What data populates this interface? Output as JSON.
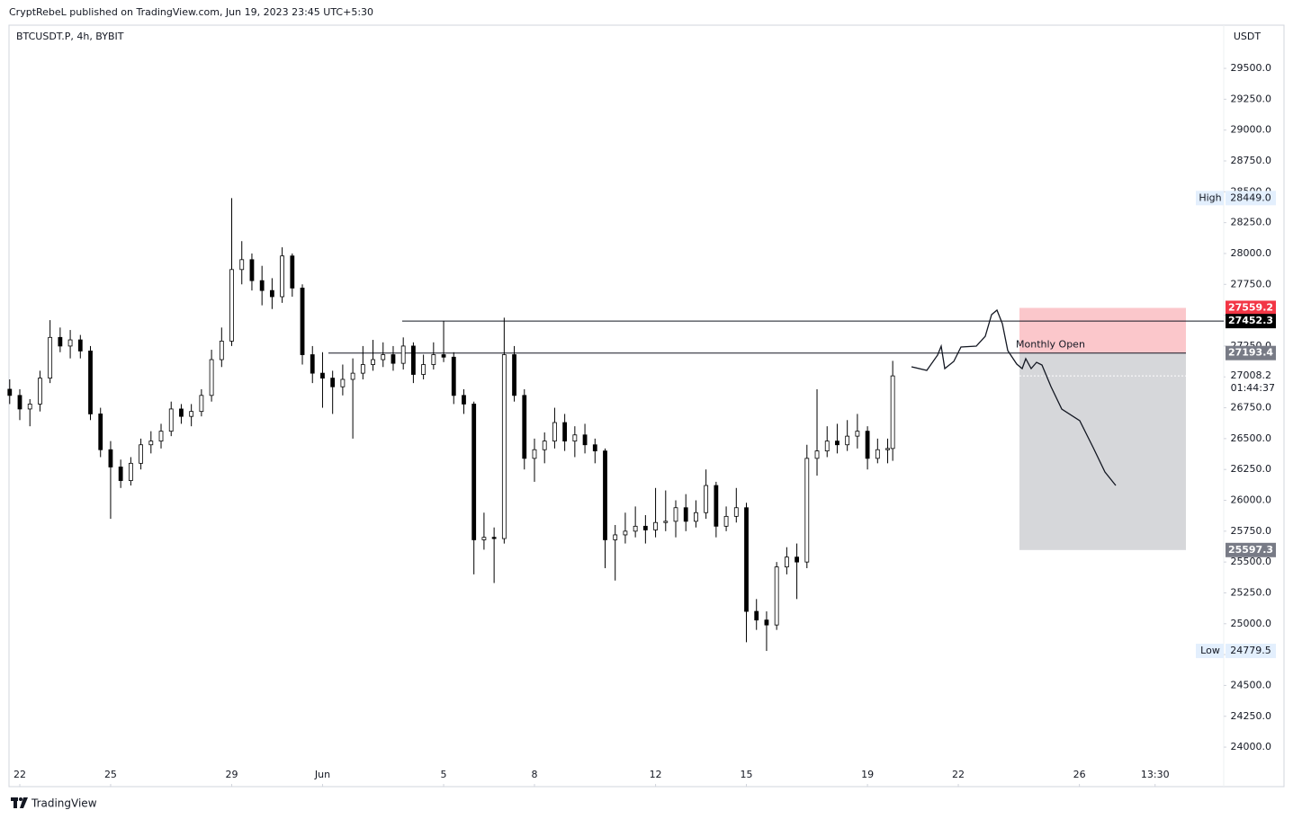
{
  "header": {
    "published": "CryptRebeL published on TradingView.com, Jun 19, 2023 23:45 UTC+5:30",
    "branding": "TradingView"
  },
  "chart_data": {
    "type": "candlestick",
    "title": "BTCUSDT.P, 4h, BYBIT",
    "y_axis_label": "USDT",
    "up_color": "#ffffff",
    "down_color": "#000000",
    "border_color": "#000000",
    "xlim": [
      -2.14,
      238.6
    ],
    "ylim": [
      23680,
      29850
    ],
    "xticks": [
      {
        "value": 0,
        "label": "22"
      },
      {
        "value": 18,
        "label": "25"
      },
      {
        "value": 42,
        "label": "29"
      },
      {
        "value": 60,
        "label": "Jun"
      },
      {
        "value": 84,
        "label": "5"
      },
      {
        "value": 102,
        "label": "8"
      },
      {
        "value": 126,
        "label": "12"
      },
      {
        "value": 144,
        "label": "15"
      },
      {
        "value": 168,
        "label": "19"
      },
      {
        "value": 186,
        "label": "22"
      },
      {
        "value": 210,
        "label": "26"
      },
      {
        "value": 225,
        "label": "13:30"
      }
    ],
    "yticks": [
      {
        "value": 24000,
        "label": "24000.0"
      },
      {
        "value": 24250,
        "label": "24250.0"
      },
      {
        "value": 24500,
        "label": "24500.0"
      },
      {
        "value": 24750,
        "label": "24750.0"
      },
      {
        "value": 25000,
        "label": "25000.0"
      },
      {
        "value": 25250,
        "label": "25250.0"
      },
      {
        "value": 25500,
        "label": "25500.0"
      },
      {
        "value": 25750,
        "label": "25750.0"
      },
      {
        "value": 26000,
        "label": "26000.0"
      },
      {
        "value": 26250,
        "label": "26250.0"
      },
      {
        "value": 26500,
        "label": "26500.0"
      },
      {
        "value": 26750,
        "label": "26750.0"
      },
      {
        "value": 27000,
        "label": "27000.0"
      },
      {
        "value": 27250,
        "label": "27250.0"
      },
      {
        "value": 27500,
        "label": "27500.0"
      },
      {
        "value": 27750,
        "label": "27750.0"
      },
      {
        "value": 28000,
        "label": "28000.0"
      },
      {
        "value": 28250,
        "label": "28250.0"
      },
      {
        "value": 28500,
        "label": "28500.0"
      },
      {
        "value": 28750,
        "label": "28750.0"
      },
      {
        "value": 29000,
        "label": "29000.0"
      },
      {
        "value": 29250,
        "label": "29250.0"
      },
      {
        "value": 29500,
        "label": "29500.0"
      }
    ],
    "x": [
      -2,
      0,
      2,
      4,
      6,
      8,
      10,
      12,
      14,
      16,
      18,
      20,
      22,
      24,
      26,
      28,
      30,
      32,
      34,
      36,
      38,
      40,
      42,
      44,
      46,
      48,
      50,
      52,
      54,
      56,
      58,
      60,
      62,
      64,
      66,
      68,
      70,
      72,
      74,
      76,
      78,
      80,
      82,
      84,
      86,
      88,
      90,
      92,
      94,
      96,
      98,
      100,
      102,
      104,
      106,
      108,
      110,
      112,
      114,
      116,
      118,
      120,
      122,
      124,
      126,
      128,
      130,
      132,
      134,
      136,
      138,
      140,
      142,
      144,
      146,
      148,
      150,
      152,
      154,
      156,
      158,
      160,
      162,
      164,
      166,
      168,
      170,
      172,
      173
    ],
    "candles": [
      [
        26900,
        26980,
        26780,
        26850
      ],
      [
        26850,
        26900,
        26650,
        26740
      ],
      [
        26740,
        26820,
        26600,
        26780
      ],
      [
        26780,
        27050,
        26720,
        26990
      ],
      [
        26990,
        27460,
        26950,
        27320
      ],
      [
        27320,
        27400,
        27200,
        27250
      ],
      [
        27250,
        27380,
        27150,
        27300
      ],
      [
        27300,
        27340,
        27150,
        27210
      ],
      [
        27210,
        27250,
        26650,
        26700
      ],
      [
        26700,
        26750,
        26350,
        26410
      ],
      [
        26410,
        26480,
        25850,
        26270
      ],
      [
        26270,
        26330,
        26100,
        26160
      ],
      [
        26160,
        26350,
        26120,
        26300
      ],
      [
        26300,
        26500,
        26250,
        26450
      ],
      [
        26450,
        26560,
        26380,
        26480
      ],
      [
        26480,
        26620,
        26420,
        26560
      ],
      [
        26560,
        26800,
        26520,
        26740
      ],
      [
        26740,
        26780,
        26620,
        26680
      ],
      [
        26680,
        26780,
        26600,
        26720
      ],
      [
        26720,
        26900,
        26680,
        26850
      ],
      [
        26850,
        27220,
        26800,
        27140
      ],
      [
        27140,
        27400,
        27080,
        27290
      ],
      [
        27290,
        28449,
        27250,
        27870
      ],
      [
        27870,
        28100,
        27750,
        27950
      ],
      [
        27950,
        28000,
        27700,
        27780
      ],
      [
        27780,
        27900,
        27580,
        27700
      ],
      [
        27700,
        27800,
        27550,
        27650
      ],
      [
        27650,
        28050,
        27600,
        27980
      ],
      [
        27980,
        28000,
        27650,
        27720
      ],
      [
        27720,
        27750,
        27100,
        27180
      ],
      [
        27180,
        27250,
        26950,
        27030
      ],
      [
        27030,
        27200,
        26750,
        26990
      ],
      [
        26990,
        27050,
        26700,
        26920
      ],
      [
        26920,
        27100,
        26850,
        26980
      ],
      [
        26980,
        27150,
        26500,
        27030
      ],
      [
        27030,
        27250,
        26980,
        27100
      ],
      [
        27100,
        27300,
        27050,
        27140
      ],
      [
        27140,
        27280,
        27080,
        27180
      ],
      [
        27180,
        27250,
        27050,
        27110
      ],
      [
        27110,
        27320,
        27060,
        27250
      ],
      [
        27250,
        27280,
        26950,
        27020
      ],
      [
        27020,
        27180,
        26980,
        27100
      ],
      [
        27100,
        27280,
        27060,
        27180
      ],
      [
        27180,
        27452,
        27120,
        27160
      ],
      [
        27160,
        27200,
        26780,
        26850
      ],
      [
        26850,
        26900,
        26700,
        26780
      ],
      [
        26780,
        26800,
        25400,
        25680
      ],
      [
        25680,
        25900,
        25600,
        25700
      ],
      [
        25700,
        25780,
        25330,
        25690
      ],
      [
        25690,
        27480,
        25650,
        27180
      ],
      [
        27180,
        27250,
        26800,
        26850
      ],
      [
        26850,
        26900,
        26250,
        26340
      ],
      [
        26340,
        26500,
        26150,
        26410
      ],
      [
        26410,
        26550,
        26300,
        26480
      ],
      [
        26480,
        26750,
        26420,
        26630
      ],
      [
        26630,
        26700,
        26400,
        26480
      ],
      [
        26480,
        26600,
        26350,
        26530
      ],
      [
        26530,
        26620,
        26380,
        26450
      ],
      [
        26450,
        26500,
        26300,
        26400
      ],
      [
        26400,
        26420,
        25450,
        25680
      ],
      [
        25680,
        25800,
        25350,
        25720
      ],
      [
        25720,
        25900,
        25650,
        25750
      ],
      [
        25750,
        25950,
        25700,
        25790
      ],
      [
        25790,
        25880,
        25650,
        25760
      ],
      [
        25760,
        26100,
        25700,
        25820
      ],
      [
        25820,
        26080,
        25750,
        25830
      ],
      [
        25830,
        26000,
        25700,
        25940
      ],
      [
        25940,
        26050,
        25750,
        25830
      ],
      [
        25830,
        26000,
        25780,
        25900
      ],
      [
        25900,
        26250,
        25850,
        26120
      ],
      [
        26120,
        26150,
        25700,
        25790
      ],
      [
        25790,
        25950,
        25750,
        25870
      ],
      [
        25870,
        26100,
        25820,
        25940
      ],
      [
        25940,
        25980,
        24850,
        25100
      ],
      [
        25100,
        25200,
        24950,
        25030
      ],
      [
        25030,
        25100,
        24779.5,
        24990
      ],
      [
        24990,
        25500,
        24950,
        25460
      ],
      [
        25460,
        25620,
        25400,
        25540
      ],
      [
        25540,
        25650,
        25200,
        25500
      ],
      [
        25500,
        26450,
        25450,
        26340
      ],
      [
        26340,
        26900,
        26200,
        26400
      ],
      [
        26400,
        26600,
        26350,
        26480
      ],
      [
        26480,
        26620,
        26380,
        26450
      ],
      [
        26450,
        26650,
        26400,
        26520
      ],
      [
        26520,
        26700,
        26420,
        26560
      ],
      [
        26560,
        26600,
        26250,
        26340
      ],
      [
        26340,
        26500,
        26300,
        26410
      ],
      [
        26410,
        26500,
        26300,
        26420
      ],
      [
        26420,
        27130,
        26320,
        27008.2
      ]
    ],
    "high": {
      "label": "High",
      "value": 28449,
      "value_label": "28449.0"
    },
    "low": {
      "label": "Low",
      "value": 24779.5
    },
    "last_price": {
      "value": 27008.2,
      "countdown": "01:44:37"
    },
    "resistance": 27452.3,
    "monthly_open": {
      "label": "Monthly Open",
      "value": 27193.4
    },
    "position": {
      "stop": 27559.2,
      "entry": 27193.4,
      "target": 25597.3,
      "stop_color": "#f23645",
      "target_color": "#787b86"
    }
  }
}
